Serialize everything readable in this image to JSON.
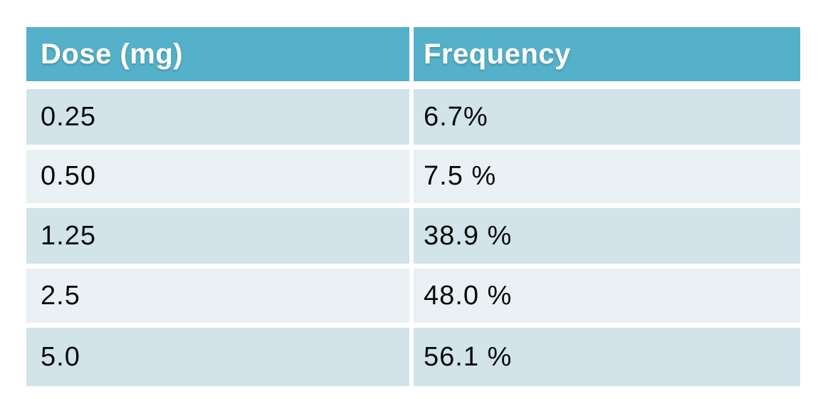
{
  "table": {
    "header": {
      "dose": "Dose (mg)",
      "frequency": "Frequency"
    },
    "rows": [
      {
        "dose": "0.25",
        "frequency": "6.7%"
      },
      {
        "dose": "0.50",
        "frequency": "7.5 %"
      },
      {
        "dose": "1.25",
        "frequency": "38.9 %"
      },
      {
        "dose": "2.5",
        "frequency": "48.0 %"
      },
      {
        "dose": "5.0",
        "frequency": "56.1 %"
      }
    ]
  },
  "colors": {
    "header_bg": "#55B1C9",
    "header_text": "#FFFFFF",
    "row_odd_bg": "#D2E3EA",
    "row_even_bg": "#E9F1F5",
    "body_text": "#0B0B0B",
    "canvas_bg": "#FFFFFF"
  },
  "chart_data": {
    "type": "table",
    "title": "",
    "columns": [
      "Dose (mg)",
      "Frequency"
    ],
    "rows": [
      [
        "0.25",
        "6.7%"
      ],
      [
        "0.50",
        "7.5 %"
      ],
      [
        "1.25",
        "38.9 %"
      ],
      [
        "2.5",
        "48.0 %"
      ],
      [
        "5.0",
        "56.1 %"
      ]
    ],
    "values": {
      "dose_mg": [
        0.25,
        0.5,
        1.25,
        2.5,
        5.0
      ],
      "frequency_pct": [
        6.7,
        7.5,
        38.9,
        48.0,
        56.1
      ]
    },
    "layout": {
      "header_row": true,
      "banded_rows": true,
      "gridlines": "white gaps between cells"
    }
  }
}
